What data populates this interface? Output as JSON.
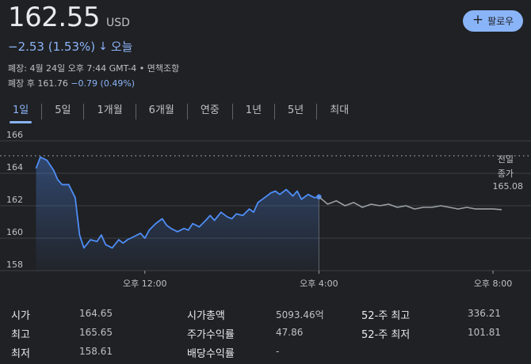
{
  "quote": {
    "price": "162.55",
    "currency": "USD",
    "change": "−2.53 (1.53%)",
    "change_arrow": "↓",
    "period": "오늘",
    "close_info": "폐장: 4월 24일 오후 7:44 GMT-4 • 면책조항",
    "after_hours_label": "폐장 후 161.76",
    "after_hours_change": "−0.79 (0.49%)"
  },
  "follow_button": {
    "label": "팔로우",
    "icon": "plus-icon"
  },
  "tabs": [
    {
      "label": "1일",
      "active": true
    },
    {
      "label": "5일",
      "active": false
    },
    {
      "label": "1개월",
      "active": false
    },
    {
      "label": "6개월",
      "active": false
    },
    {
      "label": "연중",
      "active": false
    },
    {
      "label": "1년",
      "active": false
    },
    {
      "label": "5년",
      "active": false
    },
    {
      "label": "최대",
      "active": false
    }
  ],
  "chart": {
    "ref_label_1": "전일",
    "ref_label_2": "종가",
    "ref_value": "165.08",
    "colors": {
      "line": "#4e8ef7",
      "after_hours": "#9aa0a6",
      "ref": "#9aa0a6",
      "grid": "#3c4043"
    }
  },
  "chart_data": {
    "type": "line",
    "y_ticks": [
      "166",
      "164",
      "162",
      "160",
      "158"
    ],
    "x_ticks": [
      "오후 12:00",
      "오후 4:00",
      "오후 8:00"
    ],
    "ylim": [
      158,
      166
    ],
    "previous_close": 165.08,
    "series": [
      {
        "segment": "regular",
        "x": [
          9.5,
          9.6,
          9.75,
          9.9,
          10,
          10.1,
          10.25,
          10.4,
          10.5,
          10.6,
          10.75,
          10.9,
          11,
          11.1,
          11.25,
          11.4,
          11.5,
          11.6,
          11.75,
          11.9,
          12,
          12.1,
          12.25,
          12.4,
          12.5,
          12.6,
          12.75,
          12.9,
          13,
          13.1,
          13.25,
          13.4,
          13.5,
          13.6,
          13.75,
          13.9,
          14,
          14.1,
          14.25,
          14.4,
          14.5,
          14.6,
          14.75,
          14.9,
          15,
          15.1,
          15.25,
          15.4,
          15.5,
          15.6,
          15.75,
          15.9,
          16
        ],
        "y": [
          164.3,
          165.0,
          164.8,
          164.2,
          163.6,
          163.3,
          163.3,
          162.5,
          160.2,
          159.4,
          159.9,
          159.8,
          160.2,
          159.6,
          159.4,
          159.9,
          159.7,
          159.9,
          160.1,
          160.3,
          160.0,
          160.5,
          160.9,
          161.2,
          160.8,
          160.6,
          160.4,
          160.6,
          160.5,
          160.9,
          160.7,
          161.1,
          161.4,
          161.1,
          161.6,
          161.3,
          161.2,
          161.5,
          161.4,
          161.8,
          161.6,
          162.2,
          162.5,
          162.8,
          162.9,
          162.7,
          163.0,
          162.6,
          162.9,
          162.4,
          162.7,
          162.5,
          162.55
        ]
      },
      {
        "segment": "after_hours",
        "x": [
          16,
          16.2,
          16.4,
          16.6,
          16.8,
          17,
          17.2,
          17.4,
          17.6,
          17.8,
          18,
          18.2,
          18.4,
          18.6,
          18.8,
          19,
          19.2,
          19.4,
          19.6,
          19.8,
          20,
          20.2
        ],
        "y": [
          162.55,
          162.1,
          162.3,
          162.0,
          162.2,
          161.9,
          162.1,
          162.0,
          162.1,
          161.9,
          162.0,
          161.8,
          161.9,
          161.9,
          162.0,
          161.9,
          161.8,
          161.9,
          161.8,
          161.8,
          161.8,
          161.76
        ]
      }
    ],
    "x_tick_values": [
      12,
      16,
      20
    ],
    "xlim": [
      9.4,
      20.6
    ]
  },
  "stats": [
    {
      "label": "시가",
      "value": "164.65"
    },
    {
      "label": "최고",
      "value": "165.65"
    },
    {
      "label": "최저",
      "value": "158.61"
    },
    {
      "label": "시가총액",
      "value": "5093.46억"
    },
    {
      "label": "주가수익률",
      "value": "47.86"
    },
    {
      "label": "배당수익률",
      "value": "-"
    },
    {
      "label": "52-주 최고",
      "value": "336.21"
    },
    {
      "label": "52-주 최저",
      "value": "101.81"
    }
  ]
}
